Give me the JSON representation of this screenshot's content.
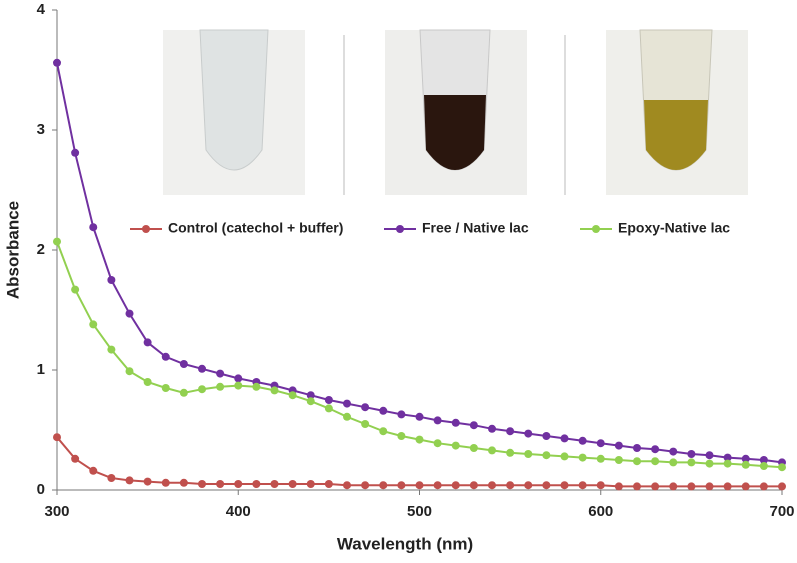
{
  "chart_data": {
    "type": "line",
    "x_label": "Wavelength (nm)",
    "y_label": "Absorbance",
    "x": [
      300,
      310,
      320,
      330,
      340,
      350,
      360,
      370,
      380,
      390,
      400,
      410,
      420,
      430,
      440,
      450,
      460,
      470,
      480,
      490,
      500,
      510,
      520,
      530,
      540,
      550,
      560,
      570,
      580,
      590,
      600,
      610,
      620,
      630,
      640,
      650,
      660,
      670,
      680,
      690,
      700
    ],
    "series": [
      {
        "name": "Control (catechol + buffer)",
        "color": "#c0504d",
        "values": [
          0.44,
          0.26,
          0.16,
          0.1,
          0.08,
          0.07,
          0.06,
          0.06,
          0.05,
          0.05,
          0.05,
          0.05,
          0.05,
          0.05,
          0.05,
          0.05,
          0.04,
          0.04,
          0.04,
          0.04,
          0.04,
          0.04,
          0.04,
          0.04,
          0.04,
          0.04,
          0.04,
          0.04,
          0.04,
          0.04,
          0.04,
          0.03,
          0.03,
          0.03,
          0.03,
          0.03,
          0.03,
          0.03,
          0.03,
          0.03,
          0.03
        ]
      },
      {
        "name": "Free / Native lac",
        "color": "#7030a0",
        "values": [
          3.56,
          2.81,
          2.19,
          1.75,
          1.47,
          1.23,
          1.11,
          1.05,
          1.01,
          0.97,
          0.93,
          0.9,
          0.87,
          0.83,
          0.79,
          0.75,
          0.72,
          0.69,
          0.66,
          0.63,
          0.61,
          0.58,
          0.56,
          0.54,
          0.51,
          0.49,
          0.47,
          0.45,
          0.43,
          0.41,
          0.39,
          0.37,
          0.35,
          0.34,
          0.32,
          0.3,
          0.29,
          0.27,
          0.26,
          0.25,
          0.23
        ]
      },
      {
        "name": "Epoxy-Native lac",
        "color": "#92d050",
        "values": [
          2.07,
          1.67,
          1.38,
          1.17,
          0.99,
          0.9,
          0.85,
          0.81,
          0.84,
          0.86,
          0.87,
          0.86,
          0.83,
          0.79,
          0.74,
          0.68,
          0.61,
          0.55,
          0.49,
          0.45,
          0.42,
          0.39,
          0.37,
          0.35,
          0.33,
          0.31,
          0.3,
          0.29,
          0.28,
          0.27,
          0.26,
          0.25,
          0.24,
          0.24,
          0.23,
          0.23,
          0.22,
          0.22,
          0.21,
          0.2,
          0.19
        ]
      }
    ],
    "xlim": [
      300,
      700
    ],
    "xticks": [
      300,
      400,
      500,
      600,
      700
    ],
    "ylim": [
      0,
      4
    ],
    "yticks": [
      0,
      1,
      2,
      3,
      4
    ],
    "grid": false,
    "legend": "center"
  }
}
